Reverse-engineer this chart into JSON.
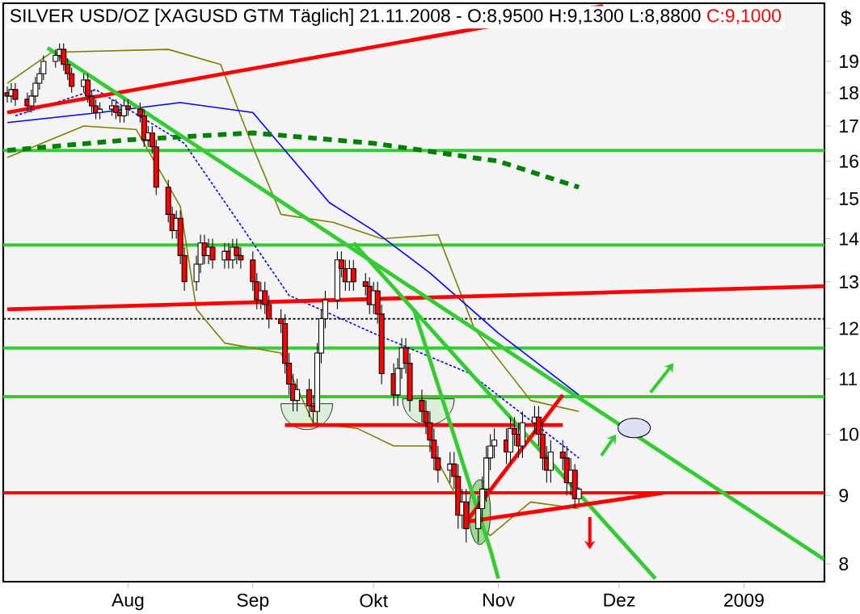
{
  "chart_data": {
    "type": "candlestick",
    "title": "SILVER USD/OZ [XAGUSD GTM  Täglich] 21.11.2008 - O:8,9500 H:9,1300 L:8,8800",
    "annotations": [
      "C:9,1000"
    ],
    "ylabel": "$",
    "log": "y",
    "xlim": [
      "2008-07-01",
      "2009-01-21"
    ],
    "ylim": [
      7.76,
      21.0
    ],
    "yticks": [
      8,
      9,
      10,
      11,
      12,
      13,
      14,
      15,
      16,
      17,
      18,
      19
    ],
    "xticks": [
      {
        "value": "2008-08-01",
        "label": "Aug"
      },
      {
        "value": "2008-09-01",
        "label": "Sep"
      },
      {
        "value": "2008-10-01",
        "label": "Okt"
      },
      {
        "value": "2008-11-01",
        "label": "Nov"
      },
      {
        "value": "2008-12-01",
        "label": "Dez"
      },
      {
        "value": "2009-01-01",
        "label": "2009"
      }
    ],
    "x": [
      "2008-07-02",
      "2008-07-03",
      "2008-07-04",
      "2008-07-07",
      "2008-07-08",
      "2008-07-09",
      "2008-07-10",
      "2008-07-11",
      "2008-07-14",
      "2008-07-15",
      "2008-07-16",
      "2008-07-17",
      "2008-07-18",
      "2008-07-21",
      "2008-07-22",
      "2008-07-23",
      "2008-07-24",
      "2008-07-25",
      "2008-07-28",
      "2008-07-29",
      "2008-07-30",
      "2008-07-31",
      "2008-08-01",
      "2008-08-04",
      "2008-08-05",
      "2008-08-06",
      "2008-08-07",
      "2008-08-08",
      "2008-08-11",
      "2008-08-12",
      "2008-08-13",
      "2008-08-14",
      "2008-08-15",
      "2008-08-18",
      "2008-08-19",
      "2008-08-20",
      "2008-08-21",
      "2008-08-22",
      "2008-08-25",
      "2008-08-26",
      "2008-08-27",
      "2008-08-28",
      "2008-08-29",
      "2008-09-01",
      "2008-09-02",
      "2008-09-03",
      "2008-09-04",
      "2008-09-05",
      "2008-09-08",
      "2008-09-09",
      "2008-09-10",
      "2008-09-11",
      "2008-09-12",
      "2008-09-15",
      "2008-09-16",
      "2008-09-17",
      "2008-09-18",
      "2008-09-19",
      "2008-09-22",
      "2008-09-23",
      "2008-09-24",
      "2008-09-25",
      "2008-09-26",
      "2008-09-29",
      "2008-09-30",
      "2008-10-01",
      "2008-10-02",
      "2008-10-03",
      "2008-10-06",
      "2008-10-07",
      "2008-10-08",
      "2008-10-09",
      "2008-10-10",
      "2008-10-13",
      "2008-10-14",
      "2008-10-15",
      "2008-10-16",
      "2008-10-17",
      "2008-10-20",
      "2008-10-21",
      "2008-10-22",
      "2008-10-23",
      "2008-10-24",
      "2008-10-27",
      "2008-10-28",
      "2008-10-29",
      "2008-10-30",
      "2008-10-31",
      "2008-11-03",
      "2008-11-04",
      "2008-11-05",
      "2008-11-06",
      "2008-11-07",
      "2008-11-10",
      "2008-11-11",
      "2008-11-12",
      "2008-11-13",
      "2008-11-14",
      "2008-11-17",
      "2008-11-18",
      "2008-11-19",
      "2008-11-20",
      "2008-11-21"
    ],
    "ohlc": [
      [
        18.0,
        18.2,
        17.7,
        17.9
      ],
      [
        17.9,
        18.3,
        17.7,
        18.1
      ],
      [
        18.1,
        18.3,
        17.6,
        17.8
      ],
      [
        17.8,
        18.0,
        17.4,
        17.6
      ],
      [
        17.6,
        18.1,
        17.4,
        17.9
      ],
      [
        17.9,
        18.5,
        17.7,
        18.3
      ],
      [
        18.3,
        18.8,
        18.1,
        18.6
      ],
      [
        18.6,
        19.2,
        18.4,
        19.0
      ],
      [
        19.0,
        19.4,
        18.8,
        19.2
      ],
      [
        19.2,
        19.6,
        19.0,
        19.4
      ],
      [
        19.4,
        19.6,
        18.7,
        18.9
      ],
      [
        18.9,
        19.1,
        18.4,
        18.6
      ],
      [
        18.6,
        18.8,
        18.0,
        18.2
      ],
      [
        18.2,
        18.6,
        18.0,
        18.4
      ],
      [
        18.4,
        18.6,
        17.7,
        17.9
      ],
      [
        17.9,
        18.1,
        17.4,
        17.6
      ],
      [
        17.6,
        17.8,
        17.2,
        17.4
      ],
      [
        17.4,
        17.7,
        17.2,
        17.5
      ],
      [
        17.5,
        17.8,
        17.3,
        17.6
      ],
      [
        17.6,
        17.8,
        17.2,
        17.4
      ],
      [
        17.4,
        17.6,
        17.1,
        17.3
      ],
      [
        17.3,
        17.8,
        17.1,
        17.6
      ],
      [
        17.6,
        17.8,
        17.3,
        17.5
      ],
      [
        17.5,
        17.7,
        17.1,
        17.3
      ],
      [
        17.3,
        17.5,
        16.4,
        16.6
      ],
      [
        16.6,
        17.0,
        16.4,
        16.8
      ],
      [
        16.8,
        17.0,
        16.2,
        16.4
      ],
      [
        16.4,
        16.6,
        15.1,
        15.3
      ],
      [
        15.3,
        15.5,
        14.4,
        14.6
      ],
      [
        14.6,
        14.8,
        14.0,
        14.2
      ],
      [
        14.2,
        14.7,
        14.0,
        14.5
      ],
      [
        14.5,
        14.7,
        13.4,
        13.6
      ],
      [
        13.6,
        13.8,
        12.8,
        13.0
      ],
      [
        13.0,
        13.6,
        12.8,
        13.4
      ],
      [
        13.4,
        14.1,
        13.2,
        13.9
      ],
      [
        13.9,
        14.1,
        13.4,
        13.6
      ],
      [
        13.6,
        14.0,
        13.4,
        13.8
      ],
      [
        13.8,
        14.0,
        13.3,
        13.5
      ],
      [
        13.5,
        13.9,
        13.3,
        13.7
      ],
      [
        13.7,
        13.9,
        13.3,
        13.5
      ],
      [
        13.5,
        14.0,
        13.3,
        13.8
      ],
      [
        13.8,
        14.0,
        13.4,
        13.6
      ],
      [
        13.6,
        13.8,
        13.3,
        13.5
      ],
      [
        13.5,
        13.7,
        12.8,
        13.0
      ],
      [
        13.0,
        13.2,
        12.4,
        12.6
      ],
      [
        12.6,
        13.0,
        12.4,
        12.8
      ],
      [
        12.8,
        13.0,
        12.3,
        12.5
      ],
      [
        12.5,
        12.7,
        12.0,
        12.2
      ],
      [
        12.2,
        12.4,
        11.9,
        12.1
      ],
      [
        12.1,
        12.3,
        11.1,
        11.3
      ],
      [
        11.3,
        11.5,
        10.7,
        10.9
      ],
      [
        10.9,
        11.1,
        10.4,
        10.6
      ],
      [
        10.6,
        11.0,
        10.4,
        10.8
      ],
      [
        10.8,
        11.0,
        10.3,
        10.5
      ],
      [
        10.5,
        10.7,
        10.2,
        10.4
      ],
      [
        10.4,
        11.7,
        10.2,
        11.5
      ],
      [
        11.5,
        12.4,
        11.3,
        12.2
      ],
      [
        12.2,
        12.8,
        12.0,
        12.6
      ],
      [
        12.6,
        13.7,
        12.4,
        13.5
      ],
      [
        13.5,
        13.7,
        13.1,
        13.3
      ],
      [
        13.3,
        13.5,
        12.8,
        13.0
      ],
      [
        13.0,
        13.5,
        12.8,
        13.3
      ],
      [
        13.3,
        13.5,
        12.8,
        13.0
      ],
      [
        13.0,
        13.2,
        12.7,
        12.9
      ],
      [
        12.9,
        13.1,
        12.3,
        12.5
      ],
      [
        12.5,
        13.0,
        12.3,
        12.8
      ],
      [
        12.8,
        13.0,
        12.1,
        12.3
      ],
      [
        12.3,
        12.5,
        10.9,
        11.1
      ],
      [
        11.1,
        11.3,
        10.5,
        10.7
      ],
      [
        10.7,
        11.4,
        10.5,
        11.2
      ],
      [
        11.2,
        11.8,
        11.0,
        11.6
      ],
      [
        11.6,
        11.8,
        11.1,
        11.3
      ],
      [
        11.3,
        11.5,
        10.4,
        10.6
      ],
      [
        10.6,
        10.8,
        10.2,
        10.4
      ],
      [
        10.4,
        10.6,
        10.0,
        10.2
      ],
      [
        10.2,
        10.4,
        9.7,
        9.9
      ],
      [
        9.9,
        10.1,
        9.4,
        9.6
      ],
      [
        9.6,
        9.8,
        9.2,
        9.4
      ],
      [
        9.4,
        9.7,
        9.2,
        9.5
      ],
      [
        9.5,
        9.7,
        9.1,
        9.3
      ],
      [
        9.3,
        9.5,
        8.5,
        8.7
      ],
      [
        8.7,
        9.1,
        8.5,
        8.9
      ],
      [
        8.9,
        9.1,
        8.3,
        8.5
      ],
      [
        8.5,
        9.0,
        8.3,
        8.8
      ],
      [
        8.8,
        9.3,
        8.6,
        9.1
      ],
      [
        9.1,
        9.8,
        8.9,
        9.6
      ],
      [
        9.6,
        10.0,
        9.4,
        9.8
      ],
      [
        9.8,
        10.1,
        9.6,
        9.9
      ],
      [
        9.9,
        10.1,
        9.5,
        9.7
      ],
      [
        9.7,
        10.3,
        9.5,
        10.1
      ],
      [
        10.1,
        10.3,
        9.8,
        10.0
      ],
      [
        10.0,
        10.2,
        9.6,
        9.8
      ],
      [
        9.8,
        10.4,
        9.6,
        10.2
      ],
      [
        10.2,
        10.5,
        10.0,
        10.3
      ],
      [
        10.3,
        10.5,
        9.8,
        10.0
      ],
      [
        10.0,
        10.2,
        9.4,
        9.6
      ],
      [
        9.6,
        9.8,
        9.2,
        9.4
      ],
      [
        9.4,
        9.9,
        9.2,
        9.7
      ],
      [
        9.7,
        9.9,
        9.4,
        9.6
      ],
      [
        9.6,
        9.8,
        9.0,
        9.2
      ],
      [
        9.2,
        9.6,
        9.0,
        9.4
      ],
      [
        9.4,
        9.5,
        8.8,
        8.95
      ],
      [
        8.95,
        9.13,
        8.88,
        9.1
      ]
    ],
    "ref_lines": [
      {
        "axis": "y",
        "value": 16.3,
        "color": "#33cc33"
      },
      {
        "axis": "y",
        "value": 13.85,
        "color": "#33cc33"
      },
      {
        "axis": "y",
        "value": 11.6,
        "color": "#33cc33"
      },
      {
        "axis": "y",
        "value": 10.67,
        "color": "#33cc33"
      },
      {
        "axis": "y",
        "value": 12.2,
        "color": "#000000",
        "line_style": "dotted"
      },
      {
        "axis": "y",
        "value": 9.04,
        "color": "#ff0000"
      }
    ],
    "series": [
      {
        "type": "line",
        "color": "#808000",
        "line_style": "solid",
        "x": [
          "2008-07-02",
          "2008-07-13",
          "2008-08-11",
          "2008-08-24",
          "2008-09-01",
          "2008-09-08",
          "2008-09-21",
          "2008-10-03",
          "2008-10-17",
          "2008-10-26",
          "2008-11-09",
          "2008-11-21"
        ],
        "values": [
          18.3,
          19.3,
          19.4,
          18.9,
          16.4,
          14.6,
          14.4,
          14.0,
          14.1,
          12.0,
          10.6,
          10.4
        ]
      },
      {
        "type": "line",
        "color": "#808000",
        "line_style": "solid",
        "x": [
          "2008-07-02",
          "2008-07-21",
          "2008-08-03",
          "2008-08-14",
          "2008-08-18",
          "2008-08-25",
          "2008-09-08",
          "2008-09-16",
          "2008-09-27",
          "2008-10-06",
          "2008-10-15",
          "2008-10-24",
          "2008-10-30",
          "2008-11-09",
          "2008-11-21"
        ],
        "values": [
          16.1,
          17.0,
          16.9,
          14.8,
          12.4,
          11.7,
          11.5,
          10.2,
          10.1,
          9.8,
          9.8,
          8.7,
          8.4,
          8.9,
          8.8
        ]
      },
      {
        "type": "line",
        "color": "#0000ff",
        "line_style": "solid",
        "x": [
          "2008-07-02",
          "2008-07-25",
          "2008-08-14",
          "2008-09-01",
          "2008-09-20",
          "2008-10-01",
          "2008-10-15",
          "2008-11-01",
          "2008-11-21"
        ],
        "values": [
          17.1,
          17.4,
          17.7,
          17.4,
          14.9,
          14.2,
          13.2,
          11.9,
          10.7
        ]
      },
      {
        "type": "line",
        "color": "#0000ff",
        "line_style": "dotted",
        "x": [
          "2008-07-04",
          "2008-07-24",
          "2008-08-15",
          "2008-09-10",
          "2008-10-01",
          "2008-10-25",
          "2008-11-21"
        ],
        "values": [
          17.3,
          18.1,
          16.5,
          12.7,
          11.9,
          11.1,
          9.6
        ]
      },
      {
        "type": "line",
        "color": "#008000",
        "line_style": "dashed",
        "x": [
          "2008-07-02",
          "2008-08-01",
          "2008-09-01",
          "2008-10-01",
          "2008-11-01",
          "2008-11-21"
        ],
        "values": [
          16.3,
          16.6,
          16.8,
          16.5,
          16.0,
          15.3
        ]
      },
      {
        "type": "line",
        "color": "#ff0000",
        "line_style": "solid",
        "x": [
          "2008-07-02",
          "2008-11-27"
        ],
        "values": [
          17.4,
          20.9
        ]
      },
      {
        "type": "line",
        "color": "#ff0000",
        "line_style": "solid",
        "x": [
          "2008-07-02",
          "2009-01-21"
        ],
        "values": [
          12.4,
          12.9
        ]
      },
      {
        "type": "line",
        "color": "#ff0000",
        "line_style": "solid",
        "x": [
          "2008-09-09",
          "2008-11-17"
        ],
        "values": [
          10.16,
          10.16
        ]
      },
      {
        "type": "line",
        "color": "#33cc33",
        "line_style": "solid",
        "x": [
          "2008-07-12",
          "2009-01-21"
        ],
        "values": [
          19.45,
          8.06
        ]
      },
      {
        "type": "line",
        "color": "#33cc33",
        "line_style": "solid",
        "x": [
          "2008-09-26",
          "2008-12-10"
        ],
        "values": [
          13.9,
          7.8
        ]
      },
      {
        "type": "line",
        "color": "#33cc33",
        "line_style": "solid",
        "x": [
          "2008-10-11",
          "2008-10-30",
          "2008-11-01"
        ],
        "values": [
          12.4,
          8.2,
          7.8
        ]
      },
      {
        "type": "line",
        "color": "#ff0000",
        "line_style": "solid",
        "x": [
          "2008-11-17",
          "2008-10-24",
          "2008-12-12"
        ],
        "values": [
          10.7,
          8.6,
          9.04
        ]
      }
    ]
  }
}
